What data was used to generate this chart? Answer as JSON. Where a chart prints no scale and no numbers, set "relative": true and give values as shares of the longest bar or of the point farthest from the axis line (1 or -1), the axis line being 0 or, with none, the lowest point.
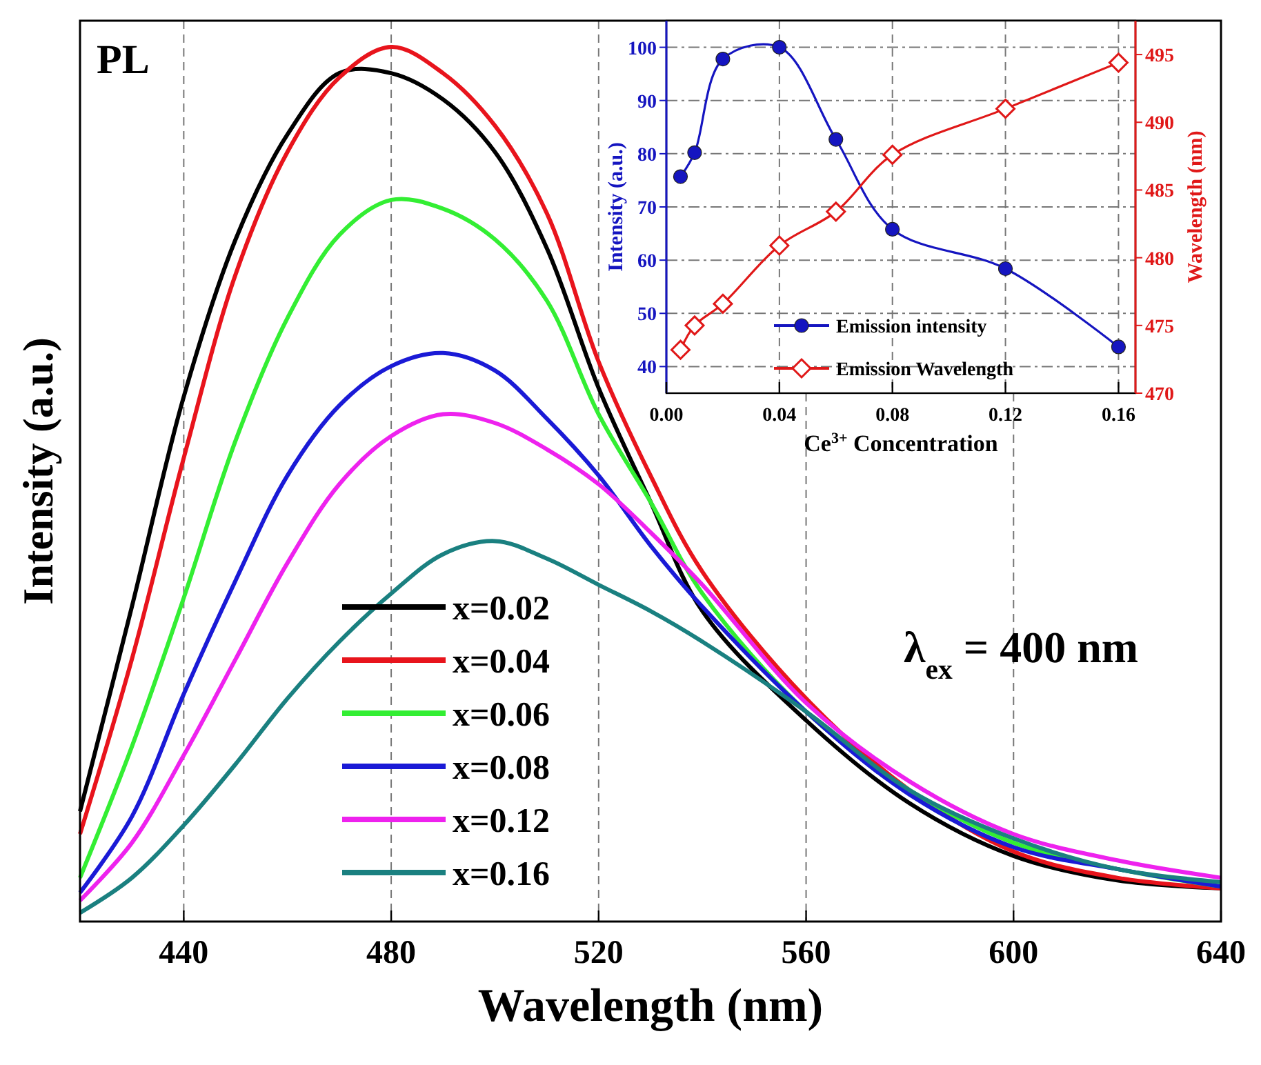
{
  "chart_data": [
    {
      "type": "line",
      "relative": true,
      "xlabel": "Wavelength (nm)",
      "ylabel": "Intensity (a.u.)",
      "xlim": [
        420,
        640
      ],
      "xticks": [
        440,
        480,
        520,
        560,
        600,
        640
      ],
      "grid": "x",
      "legend": "bottom left",
      "tick_labels": "x",
      "annotations": [
        "PL",
        "λ$_{ex}$ = 400 nm"
      ],
      "x": [
        420,
        430,
        440,
        450,
        460,
        470,
        480,
        490,
        500,
        510,
        520,
        530,
        540,
        560,
        580,
        600,
        620,
        640
      ],
      "series": [
        {
          "name": "x=0.02",
          "color": "#000000",
          "values": [
            0.126,
            0.36,
            0.6,
            0.78,
            0.9,
            0.97,
            0.97,
            0.94,
            0.88,
            0.77,
            0.61,
            0.48,
            0.355,
            0.23,
            0.135,
            0.075,
            0.047,
            0.038
          ]
        },
        {
          "name": "x=0.04",
          "color": "#e8141c",
          "values": [
            0.1,
            0.3,
            0.53,
            0.74,
            0.88,
            0.965,
            1,
            0.97,
            0.91,
            0.81,
            0.64,
            0.51,
            0.4,
            0.255,
            0.15,
            0.08,
            0.05,
            0.038
          ]
        },
        {
          "name": "x=0.06",
          "color": "#33ee33",
          "values": [
            0.05,
            0.2,
            0.37,
            0.55,
            0.69,
            0.785,
            0.825,
            0.815,
            0.78,
            0.71,
            0.58,
            0.48,
            0.375,
            0.24,
            0.15,
            0.09,
            0.06,
            0.04
          ]
        },
        {
          "name": "x=0.08",
          "color": "#1a1ad6",
          "values": [
            0.033,
            0.12,
            0.26,
            0.39,
            0.51,
            0.59,
            0.635,
            0.65,
            0.63,
            0.575,
            0.51,
            0.43,
            0.36,
            0.24,
            0.145,
            0.085,
            0.06,
            0.04
          ]
        },
        {
          "name": "x=0.12",
          "color": "#ee22ee",
          "values": [
            0.024,
            0.09,
            0.19,
            0.3,
            0.41,
            0.5,
            0.555,
            0.58,
            0.57,
            0.54,
            0.5,
            0.445,
            0.385,
            0.25,
            0.16,
            0.1,
            0.07,
            0.05
          ]
        },
        {
          "name": "x=0.16",
          "color": "#1a8080",
          "values": [
            0.01,
            0.05,
            0.11,
            0.18,
            0.255,
            0.32,
            0.375,
            0.42,
            0.435,
            0.415,
            0.385,
            0.355,
            0.32,
            0.24,
            0.15,
            0.095,
            0.06,
            0.045
          ]
        }
      ]
    },
    {
      "type": "line",
      "xlabel": "Ce$^{3+}$ Concentration",
      "ylabel": "Intensity (a.u.)",
      "y2label": "Wavelength (nm)",
      "xlim": [
        0,
        0.166
      ],
      "xticks": [
        {
          "value": 0,
          "label": "0.00"
        },
        0.04,
        0.08,
        0.12,
        0.16
      ],
      "ylim": [
        35,
        105
      ],
      "yticks": [
        40,
        50,
        60,
        70,
        80,
        90,
        100
      ],
      "y2lim": [
        470,
        497.5
      ],
      "y2ticks": [
        470,
        475,
        480,
        485,
        490,
        495
      ],
      "grid": true,
      "legend": "bottom",
      "x": [
        0.005,
        0.01,
        0.02,
        0.04,
        0.06,
        0.08,
        0.12,
        0.16
      ],
      "series": [
        {
          "name": "Emission intensity",
          "color": "#1515c0",
          "marker": "circle",
          "values": [
            75.7,
            80.2,
            97.8,
            100,
            82.7,
            65.8,
            58.4,
            43.7
          ]
        },
        {
          "name": "Emission Wavelength",
          "color": "#e01818",
          "marker": "diamond",
          "axis": "y2",
          "values": [
            473.2,
            475.0,
            476.6,
            480.9,
            483.4,
            487.6,
            491.0,
            494.4
          ]
        }
      ]
    }
  ]
}
